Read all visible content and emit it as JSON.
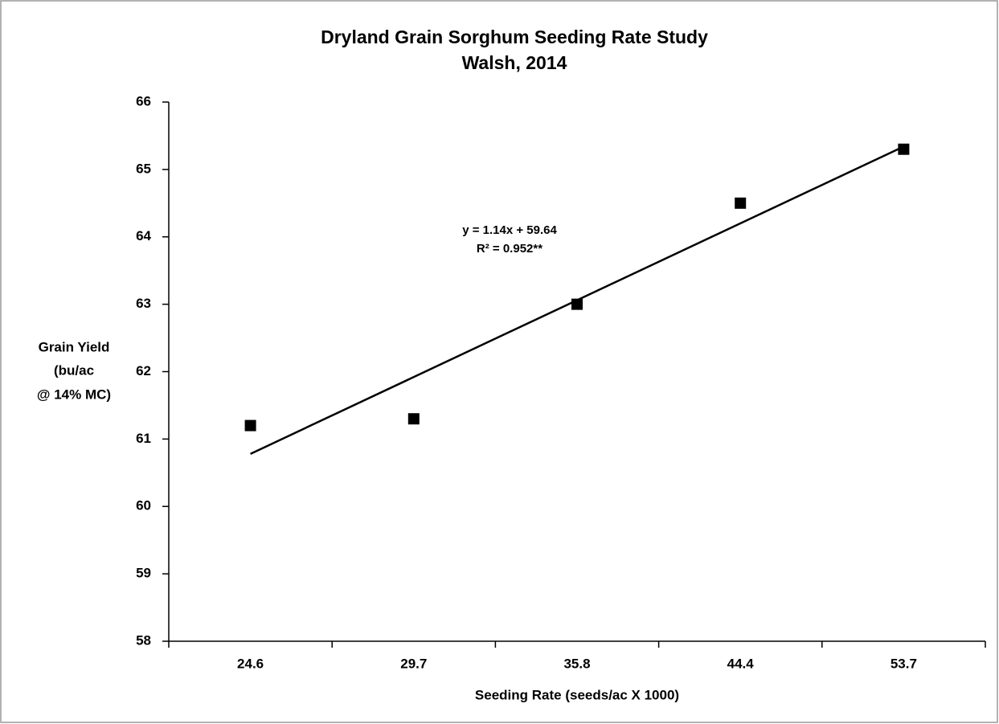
{
  "chart_data": {
    "type": "scatter",
    "title": [
      "Dryland Grain Sorghum Seeding Rate Study",
      "Walsh, 2014"
    ],
    "xlabel": "Seeding Rate (seeds/ac X 1000)",
    "ylabel": [
      "Grain Yield",
      "(bu/ac",
      "@ 14% MC)"
    ],
    "annotation": [
      "y = 1.14x + 59.64",
      "R² = 0.952**"
    ],
    "categories": [
      "24.6",
      "29.7",
      "35.8",
      "44.4",
      "53.7"
    ],
    "values": [
      61.2,
      61.3,
      63.0,
      64.5,
      65.3
    ],
    "color": "#000000",
    "trendline": {
      "start": 60.78,
      "end": 65.34
    },
    "ylim": [
      58,
      66
    ],
    "yticks": [
      58,
      59,
      60,
      61,
      62,
      63,
      64,
      65,
      66
    ]
  }
}
